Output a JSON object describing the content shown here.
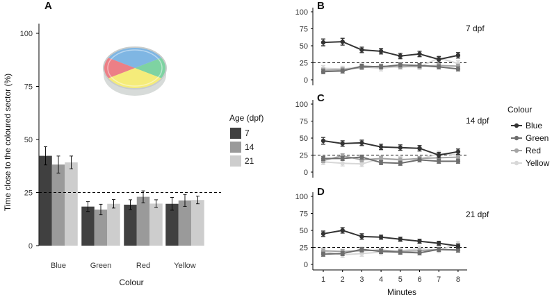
{
  "chart_data": [
    {
      "panel": "A",
      "type": "bar",
      "xlabel": "Colour",
      "ylabel": "Time close to the coloured sector (%)",
      "ylim": [
        0,
        100
      ],
      "yticks": [
        "0",
        "25",
        "50",
        "75",
        "100"
      ],
      "reference_line": 25,
      "categories": [
        "Blue",
        "Green",
        "Red",
        "Yellow"
      ],
      "legend": {
        "title": "Age (dpf)",
        "placement": "right"
      },
      "series": [
        {
          "name": "7",
          "color": "#404040",
          "values": [
            42.3,
            18.4,
            19.3,
            19.7
          ],
          "errors": [
            4.3,
            2.3,
            2.3,
            3.0
          ]
        },
        {
          "name": "14",
          "color": "#9a9a9a",
          "values": [
            38.2,
            17.0,
            23.0,
            21.3
          ],
          "errors": [
            4.0,
            2.5,
            2.8,
            2.8
          ]
        },
        {
          "name": "21",
          "color": "#cdcdcd",
          "values": [
            39.2,
            19.7,
            19.8,
            21.5
          ],
          "errors": [
            3.0,
            2.0,
            1.8,
            1.8
          ]
        }
      ],
      "sector_colors": [
        "#7fb6e3",
        "#7ed3a2",
        "#ec7f86",
        "#f5ec7a"
      ]
    },
    {
      "panel": "B",
      "type": "line",
      "annotation": "7 dpf",
      "ylim": [
        0,
        100
      ],
      "yticks": [
        "0",
        "25",
        "50",
        "75",
        "100"
      ],
      "reference_line": 25,
      "x": [
        1,
        2,
        3,
        4,
        5,
        6,
        7,
        8
      ],
      "series": [
        {
          "name": "Blue",
          "values": [
            55,
            56,
            44,
            42,
            35,
            38,
            30,
            36
          ],
          "errors": [
            5,
            5,
            4,
            4,
            4,
            4,
            4,
            4
          ]
        },
        {
          "name": "Green",
          "values": [
            12,
            13,
            20,
            19,
            22,
            21,
            19,
            16
          ],
          "errors": [
            3,
            3,
            3,
            3,
            3,
            3,
            3,
            3
          ]
        },
        {
          "name": "Red",
          "values": [
            14,
            15,
            18,
            20,
            19,
            20,
            21,
            20
          ],
          "errors": [
            3,
            3,
            3,
            3,
            3,
            3,
            3,
            3
          ]
        },
        {
          "name": "Yellow",
          "values": [
            17,
            16,
            19,
            17,
            20,
            19,
            32,
            24
          ],
          "errors": [
            4,
            4,
            4,
            4,
            4,
            4,
            4,
            4
          ]
        }
      ]
    },
    {
      "panel": "C",
      "type": "line",
      "annotation": "14 dpf",
      "ylim": [
        0,
        100
      ],
      "yticks": [
        "0",
        "25",
        "50",
        "75",
        "100"
      ],
      "reference_line": 25,
      "x": [
        1,
        2,
        3,
        4,
        5,
        6,
        7,
        8
      ],
      "series": [
        {
          "name": "Blue",
          "values": [
            46,
            42,
            43,
            37,
            36,
            35,
            25,
            30
          ],
          "errors": [
            5,
            4,
            4,
            4,
            4,
            4,
            4,
            4
          ]
        },
        {
          "name": "Green",
          "values": [
            20,
            20,
            22,
            14,
            13,
            18,
            16,
            16
          ],
          "errors": [
            3,
            3,
            3,
            3,
            3,
            3,
            3,
            3
          ]
        },
        {
          "name": "Red",
          "values": [
            17,
            24,
            18,
            20,
            18,
            20,
            21,
            22
          ],
          "errors": [
            3,
            3,
            3,
            3,
            3,
            3,
            3,
            3
          ]
        },
        {
          "name": "Yellow",
          "values": [
            15,
            13,
            12,
            20,
            19,
            19,
            27,
            25
          ],
          "errors": [
            4,
            4,
            4,
            4,
            4,
            4,
            4,
            4
          ]
        }
      ]
    },
    {
      "panel": "D",
      "type": "line",
      "annotation": "21 dpf",
      "xlabel": "Minutes",
      "ylim": [
        0,
        100
      ],
      "yticks": [
        "0",
        "25",
        "50",
        "75",
        "100"
      ],
      "reference_line": 25,
      "x": [
        1,
        2,
        3,
        4,
        5,
        6,
        7,
        8
      ],
      "series": [
        {
          "name": "Blue",
          "values": [
            45,
            50,
            41,
            40,
            37,
            34,
            31,
            27
          ],
          "errors": [
            4,
            4,
            4,
            3,
            3,
            3,
            3,
            3
          ]
        },
        {
          "name": "Green",
          "values": [
            15,
            16,
            22,
            19,
            18,
            17,
            22,
            21
          ],
          "errors": [
            3,
            3,
            3,
            3,
            3,
            3,
            3,
            3
          ]
        },
        {
          "name": "Red",
          "values": [
            20,
            19,
            20,
            21,
            19,
            20,
            22,
            21
          ],
          "errors": [
            3,
            3,
            3,
            3,
            3,
            3,
            3,
            3
          ]
        },
        {
          "name": "Yellow",
          "values": [
            19,
            14,
            16,
            18,
            20,
            23,
            21,
            30
          ],
          "errors": [
            4,
            4,
            4,
            4,
            4,
            4,
            4,
            4
          ]
        }
      ]
    }
  ],
  "line_legend": {
    "title": "Colour",
    "items": [
      {
        "name": "Blue",
        "color": "#333333"
      },
      {
        "name": "Green",
        "color": "#6e6e6e"
      },
      {
        "name": "Red",
        "color": "#a5a5a5"
      },
      {
        "name": "Yellow",
        "color": "#d8d8d8"
      }
    ]
  }
}
